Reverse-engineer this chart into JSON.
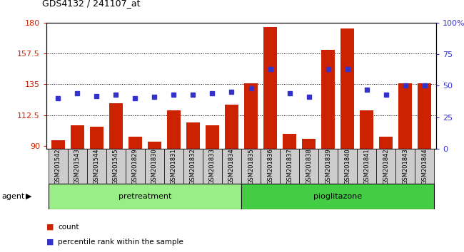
{
  "title": "GDS4132 / 241107_at",
  "samples": [
    "GSM201542",
    "GSM201543",
    "GSM201544",
    "GSM201545",
    "GSM201829",
    "GSM201830",
    "GSM201831",
    "GSM201832",
    "GSM201833",
    "GSM201834",
    "GSM201835",
    "GSM201836",
    "GSM201837",
    "GSM201838",
    "GSM201839",
    "GSM201840",
    "GSM201841",
    "GSM201842",
    "GSM201843",
    "GSM201844"
  ],
  "counts": [
    94,
    105,
    104,
    121,
    97,
    93,
    116,
    107,
    105,
    120,
    136,
    177,
    99,
    95,
    160,
    176,
    116,
    97,
    136,
    136
  ],
  "percentiles": [
    40,
    44,
    42,
    43,
    40,
    41,
    43,
    43,
    44,
    45,
    48,
    63,
    44,
    41,
    63,
    63,
    47,
    43,
    50,
    50
  ],
  "pretreatment_count": 10,
  "pioglitazone_count": 10,
  "ylim_left": [
    88,
    180
  ],
  "ylim_right": [
    0,
    100
  ],
  "yticks_left": [
    90,
    112.5,
    135,
    157.5,
    180
  ],
  "yticks_right": [
    0,
    25,
    50,
    75,
    100
  ],
  "bar_color": "#cc2200",
  "dot_color": "#3333cc",
  "pretreatment_color": "#99ee88",
  "pioglitazone_color": "#44cc44",
  "agent_label": "agent",
  "pretreatment_label": "pretreatment",
  "pioglitazone_label": "pioglitazone",
  "legend_count": "count",
  "legend_percentile": "percentile rank within the sample"
}
